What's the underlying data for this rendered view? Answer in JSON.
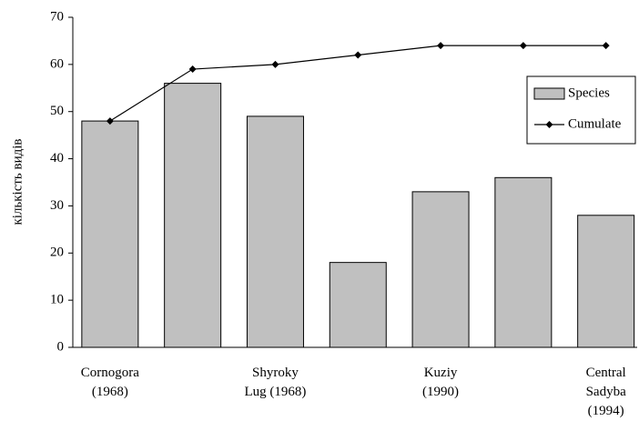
{
  "chart_data": {
    "type": "bar_line",
    "y_label": "кількість видів",
    "categories": [
      "Cornogora\n(1968)",
      null,
      "Shyroky\nLug (1968)",
      null,
      "Kuziy\n(1990)",
      null,
      "Central\nSadyba\n(1994)"
    ],
    "series": [
      {
        "name": "Species",
        "type": "bar",
        "color": "#c0c0c0",
        "values": [
          48,
          56,
          49,
          18,
          33,
          36,
          28
        ]
      },
      {
        "name": "Cumulate",
        "type": "line",
        "color": "#000000",
        "values": [
          48,
          59,
          60,
          62,
          64,
          64,
          64
        ]
      }
    ],
    "ylim": [
      0,
      70
    ],
    "yticks": [
      0,
      10,
      20,
      30,
      40,
      50,
      60,
      70
    ],
    "grid": false,
    "legend": "right"
  }
}
